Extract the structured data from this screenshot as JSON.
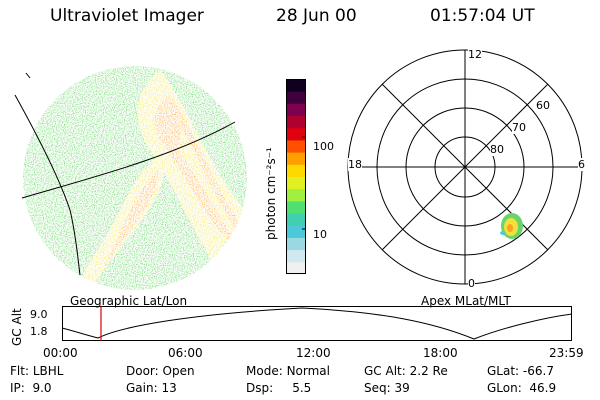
{
  "header": {
    "instrument": "Ultraviolet Imager",
    "date": "28 Jun 00",
    "time": "01:57:04 UT"
  },
  "colorbar": {
    "unit_label": "photon cm⁻²s⁻¹",
    "tick_labels": [
      "100",
      "10"
    ],
    "colors": [
      "#f0f0f0",
      "#cfe9ee",
      "#9ad9e4",
      "#4cc8d8",
      "#40d0b0",
      "#50e070",
      "#a0f040",
      "#e0f020",
      "#ffd800",
      "#ffa000",
      "#ff5000",
      "#e00010",
      "#b00030",
      "#800050",
      "#400040",
      "#100020"
    ]
  },
  "image_panel": {
    "label": "Geographic Lat/Lon",
    "accent_colors": {
      "green": "#4fd04f",
      "yellow": "#f2e23a",
      "orange": "#ffa020",
      "cyan": "#5ad8d8"
    }
  },
  "polar_plot": {
    "label": "Apex MLat/MLT",
    "mlt_labels": {
      "top": "12",
      "left": "18",
      "right": "6",
      "bottom": "0"
    },
    "lat_labels": [
      "60",
      "70",
      "80"
    ]
  },
  "timeline": {
    "ylabel": "GC Alt",
    "ytick_labels": [
      "9.0",
      "1.8"
    ],
    "xtick_labels": [
      "00:00",
      "06:00",
      "12:00",
      "18:00",
      "23:59"
    ],
    "marker_color": "#dd0000"
  },
  "status": {
    "row1": [
      {
        "key": "Flt:",
        "value": "LBHL"
      },
      {
        "key": "Door:",
        "value": "Open"
      },
      {
        "key": "Mode:",
        "value": "Normal"
      },
      {
        "key": "GC Alt:",
        "value": "2.2 Re"
      },
      {
        "key": "GLat:",
        "value": "-66.7"
      }
    ],
    "row2": [
      {
        "key": "IP:",
        "value": "9.0"
      },
      {
        "key": "Gain:",
        "value": "13"
      },
      {
        "key": "Dsp:",
        "value": "5.5"
      },
      {
        "key": "Seq:",
        "value": "39"
      },
      {
        "key": "GLon:",
        "value": "46.9"
      }
    ]
  }
}
